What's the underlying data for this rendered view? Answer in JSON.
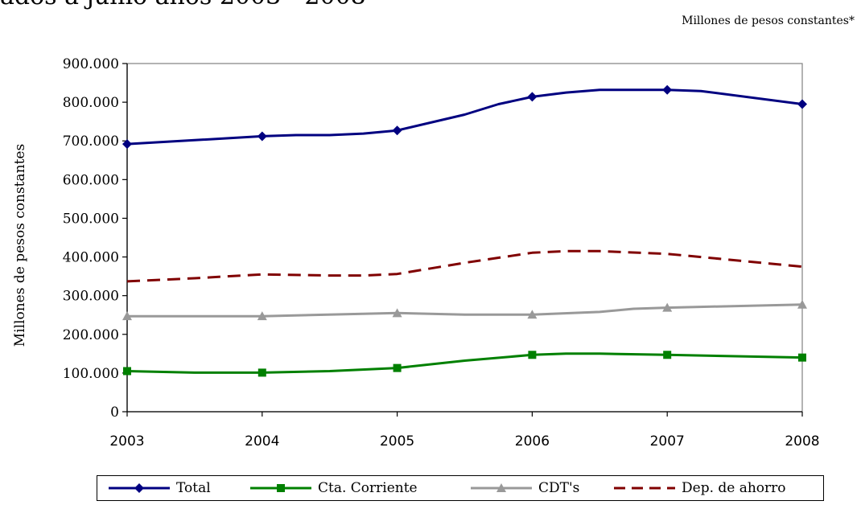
{
  "header": {
    "title_fragment": "ados a junio años 2003 - 2008",
    "units_note": "Millones de pesos constantes*"
  },
  "chart_data": {
    "type": "line",
    "ylabel": "Millones de pesos constantes",
    "xlabel": "",
    "ylim": [
      0,
      900000
    ],
    "yticks": [
      0,
      100000,
      200000,
      300000,
      400000,
      500000,
      600000,
      700000,
      800000,
      900000
    ],
    "ytick_labels": [
      "0",
      "100.000",
      "200.000",
      "300.000",
      "400.000",
      "500.000",
      "600.000",
      "700.000",
      "800.000",
      "900.000"
    ],
    "categories": [
      "2003",
      "2004",
      "2005",
      "2006",
      "2007",
      "2008"
    ],
    "grid": false,
    "legend_position": "bottom",
    "series": [
      {
        "name": "Total",
        "color": "#000080",
        "style": "solid",
        "marker": "diamond",
        "values": [
          692000,
          712000,
          727000,
          814000,
          832000,
          795000
        ],
        "intermediate": [
          {
            "x": 2003.5,
            "y": 702000
          },
          {
            "x": 2004.25,
            "y": 715000
          },
          {
            "x": 2004.5,
            "y": 715000
          },
          {
            "x": 2004.75,
            "y": 719000
          },
          {
            "x": 2005.5,
            "y": 768000
          },
          {
            "x": 2005.75,
            "y": 795000
          },
          {
            "x": 2006.25,
            "y": 825000
          },
          {
            "x": 2006.5,
            "y": 832000
          },
          {
            "x": 2006.75,
            "y": 832000
          },
          {
            "x": 2007.25,
            "y": 829000
          }
        ]
      },
      {
        "name": "Cta. Corriente",
        "color": "#008000",
        "style": "solid",
        "marker": "square",
        "values": [
          105000,
          101000,
          113000,
          147000,
          147000,
          140000
        ],
        "intermediate": [
          {
            "x": 2003.5,
            "y": 101000
          },
          {
            "x": 2004.5,
            "y": 105000
          },
          {
            "x": 2005.5,
            "y": 132000
          },
          {
            "x": 2006.25,
            "y": 150000
          },
          {
            "x": 2006.5,
            "y": 150000
          }
        ]
      },
      {
        "name": "CDT's",
        "color": "#999999",
        "style": "solid",
        "marker": "triangle",
        "values": [
          247000,
          247000,
          255000,
          251000,
          269000,
          277000
        ],
        "intermediate": [
          {
            "x": 2005.5,
            "y": 251000
          },
          {
            "x": 2006.5,
            "y": 258000
          },
          {
            "x": 2006.75,
            "y": 266000
          }
        ]
      },
      {
        "name": "Dep. de ahorro",
        "color": "#800000",
        "style": "dashed",
        "marker": "none",
        "values": [
          337000,
          355000,
          356000,
          411000,
          408000,
          375000
        ],
        "intermediate": [
          {
            "x": 2003.5,
            "y": 345000
          },
          {
            "x": 2004.5,
            "y": 352000
          },
          {
            "x": 2004.75,
            "y": 352000
          },
          {
            "x": 2005.5,
            "y": 385000
          },
          {
            "x": 2006.25,
            "y": 415000
          },
          {
            "x": 2006.5,
            "y": 415000
          },
          {
            "x": 2007.25,
            "y": 400000
          }
        ]
      }
    ]
  }
}
